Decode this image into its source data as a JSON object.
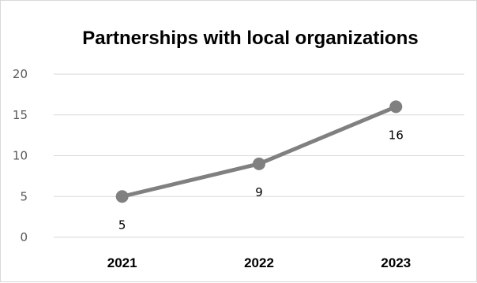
{
  "chart_data": {
    "type": "line",
    "title": "Partnerships with local organizations",
    "xlabel": "",
    "ylabel": "",
    "categories": [
      "2021",
      "2022",
      "2023"
    ],
    "series": [
      {
        "values": [
          5,
          9,
          16
        ],
        "color": "#808080"
      }
    ],
    "data_labels": [
      "5",
      "9",
      "16"
    ],
    "data_label_position": "below",
    "ylim": [
      0,
      20
    ],
    "yticks": [
      0,
      5,
      10,
      15,
      20
    ],
    "grid": true,
    "gridline_color": "#d9d9d9",
    "legend": "none"
  }
}
